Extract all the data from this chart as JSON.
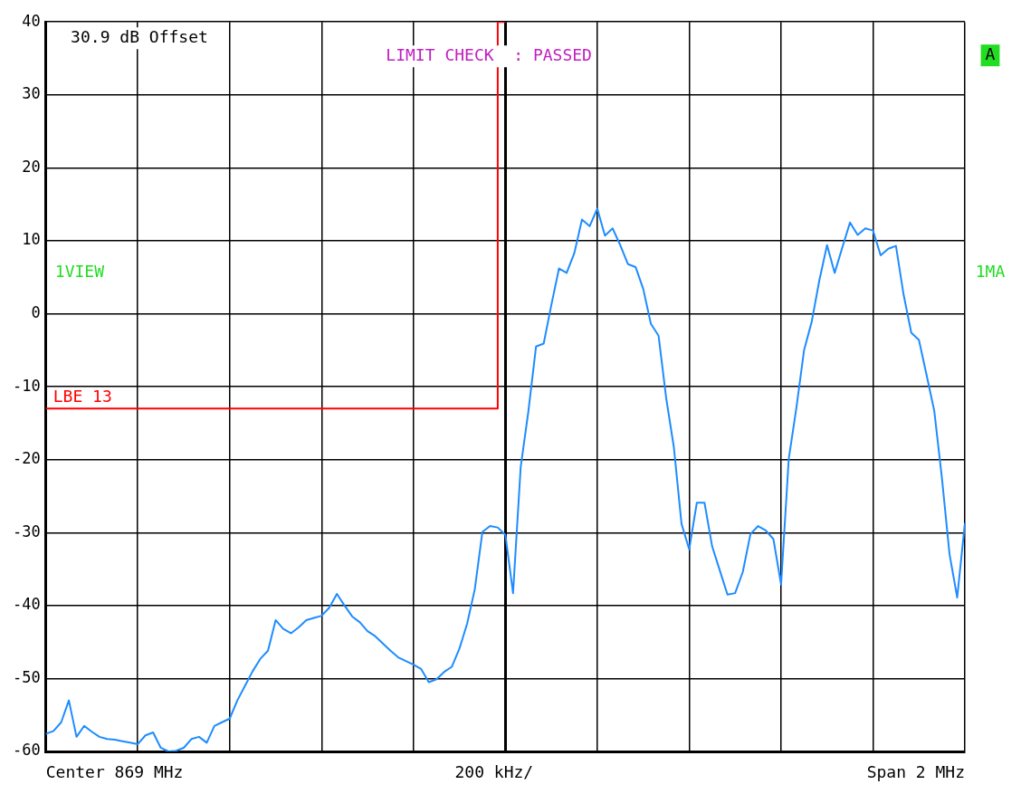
{
  "chart_data": {
    "type": "line",
    "categories": [
      null,
      null,
      null,
      null,
      null,
      null,
      null,
      null,
      null,
      null,
      null,
      null,
      null,
      null,
      null,
      null,
      null,
      null,
      null,
      null,
      null,
      null,
      null,
      null,
      null,
      null,
      null,
      null,
      null,
      null,
      null,
      null,
      null,
      null,
      null,
      null,
      null,
      null,
      null,
      null,
      null,
      null,
      null,
      null,
      null,
      null,
      null,
      null,
      null,
      null,
      null,
      null,
      null,
      null,
      null,
      null,
      null,
      null,
      null,
      null,
      null,
      null,
      null,
      null,
      null,
      null,
      null,
      null,
      null,
      null,
      null,
      null,
      null,
      null,
      null,
      null,
      null,
      null,
      null,
      null,
      null,
      null,
      null,
      null,
      null,
      null,
      null,
      null,
      null,
      null,
      null,
      null,
      null,
      null,
      null,
      null,
      null,
      null,
      null,
      null,
      null,
      null,
      null,
      null,
      null,
      null,
      null,
      null,
      null,
      null,
      null,
      null,
      null,
      null,
      null,
      null,
      null,
      null,
      null,
      null,
      null
    ],
    "ylim": [
      -60,
      40
    ],
    "yticks": [
      -60,
      -50,
      -40,
      -30,
      -20,
      -10,
      0,
      10,
      20,
      30,
      40
    ],
    "tick_labels": "y",
    "grid": true,
    "legend": false,
    "marker": "none",
    "line_style": "solid",
    "annotations": [
      "30.9 dB Offset",
      "LIMIT CHECK  : PASSED",
      "A",
      "1VIEW",
      "1MA",
      "Center 869 MHz",
      "200 kHz/",
      "Span 2 MHz"
    ],
    "series": [
      {
        "color": "#1e8cff",
        "values": [
          -57.6,
          -57.2,
          -56,
          -53,
          -58,
          -56.5,
          -57.3,
          -58,
          -58.3,
          -58.4,
          -58.6,
          -58.8,
          -59,
          -57.8,
          -57.4,
          -59.5,
          -60,
          -59.9,
          -59.5,
          -58.3,
          -58,
          -58.8,
          -56.5,
          -56,
          -55.5,
          -53,
          -51,
          -49,
          -47.3,
          -46.2,
          -42,
          -43.2,
          -43.8,
          -43,
          -42,
          -41.7,
          -41.4,
          -40.3,
          -38.4,
          -40,
          -41.5,
          -42.3,
          -43.5,
          -44.2,
          -45.2,
          -46.2,
          -47.1,
          -47.6,
          -48.1,
          -48.7,
          -50.5,
          -50.1,
          -49.1,
          -48.4,
          -45.9,
          -42.5,
          -37.8,
          -29.9,
          -29.1,
          -29.3,
          -30.3,
          -38.3,
          -21,
          -13.4,
          -4.5,
          -4.1,
          1.2,
          6.2,
          5.6,
          8.3,
          12.9,
          12,
          14.4,
          10.7,
          11.7,
          9.4,
          6.8,
          6.4,
          3.4,
          -1.4,
          -3,
          -11.6,
          -18.3,
          -28.8,
          -32.3,
          -25.9,
          -25.9,
          -31.9,
          -35.2,
          -38.5,
          -38.3,
          -35.4,
          -30.2,
          -29.1,
          -29.7,
          -30.9,
          -37.1,
          -19.9,
          -12.9,
          -5,
          -1.1,
          4.6,
          9.4,
          5.6,
          9.1,
          12.5,
          10.8,
          11.7,
          11.4,
          8,
          8.9,
          9.3,
          2.6,
          -2.6,
          -3.6,
          -8.4,
          -13.3,
          -22.5,
          -33,
          -38.9,
          -28.7
        ]
      },
      {
        "name": "LBE 13",
        "type": "step",
        "color": "#ff0000",
        "values": [
          -13,
          -13,
          -13,
          -13,
          -13,
          -13,
          -13,
          -13,
          -13,
          -13,
          -13,
          -13,
          -13,
          -13,
          -13,
          -13,
          -13,
          -13,
          -13,
          -13,
          -13,
          -13,
          -13,
          -13,
          -13,
          -13,
          -13,
          -13,
          -13,
          -13,
          -13,
          -13,
          -13,
          -13,
          -13,
          -13,
          -13,
          -13,
          -13,
          -13,
          -13,
          -13,
          -13,
          -13,
          -13,
          -13,
          -13,
          -13,
          -13,
          -13,
          -13,
          -13,
          -13,
          -13,
          -13,
          -13,
          -13,
          -13,
          -13,
          -13,
          40,
          null,
          null,
          null,
          null,
          null,
          null,
          null,
          null,
          null,
          null,
          null,
          null,
          null,
          null,
          null,
          null,
          null,
          null,
          null,
          null,
          null,
          null,
          null,
          null,
          null,
          null,
          null,
          null,
          null,
          null,
          null,
          null,
          null,
          null,
          null,
          null,
          null,
          null,
          null,
          null,
          null,
          null,
          null,
          null,
          null,
          null,
          null,
          null,
          null,
          null,
          null,
          null,
          null,
          null,
          null,
          null,
          null,
          null,
          null,
          null
        ]
      }
    ]
  }
}
